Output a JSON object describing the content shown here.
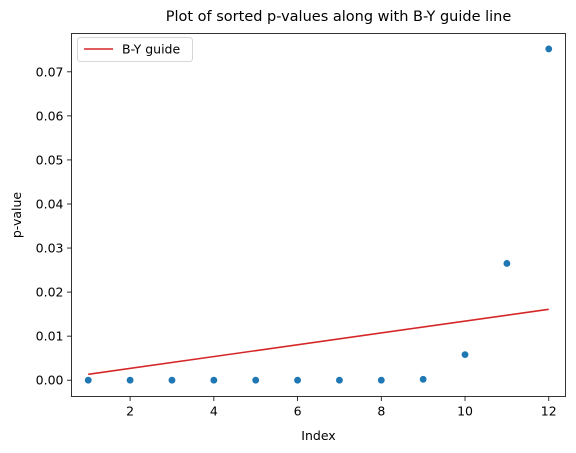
{
  "chart_data": {
    "type": "scatter",
    "title": "Plot of sorted p-values along with B-Y guide line",
    "xlabel": "Index",
    "ylabel": "p-value",
    "xlim": [
      0.6,
      12.4
    ],
    "ylim": [
      -0.0037,
      0.0787
    ],
    "x_ticks": [
      2,
      4,
      6,
      8,
      10,
      12
    ],
    "x_tick_labels": [
      "2",
      "4",
      "6",
      "8",
      "10",
      "12"
    ],
    "y_ticks": [
      0.0,
      0.01,
      0.02,
      0.03,
      0.04,
      0.05,
      0.06,
      0.07
    ],
    "y_tick_labels": [
      "0.00",
      "0.01",
      "0.02",
      "0.03",
      "0.04",
      "0.05",
      "0.06",
      "0.07"
    ],
    "grid": false,
    "legend_position": "top-left",
    "series": [
      {
        "type": "scatter",
        "color": "#1f77b4",
        "x": [
          1,
          2,
          3,
          4,
          5,
          6,
          7,
          8,
          9,
          10,
          11,
          12
        ],
        "y": [
          0.0,
          0.0,
          0.0,
          0.0,
          0.0,
          0.0,
          0.0,
          0.0,
          0.0002,
          0.0058,
          0.0265,
          0.0752
        ]
      },
      {
        "type": "line",
        "name": "B-Y guide",
        "color": "#d62728",
        "x": [
          1,
          12
        ],
        "y": [
          0.00134,
          0.0161
        ]
      }
    ]
  }
}
